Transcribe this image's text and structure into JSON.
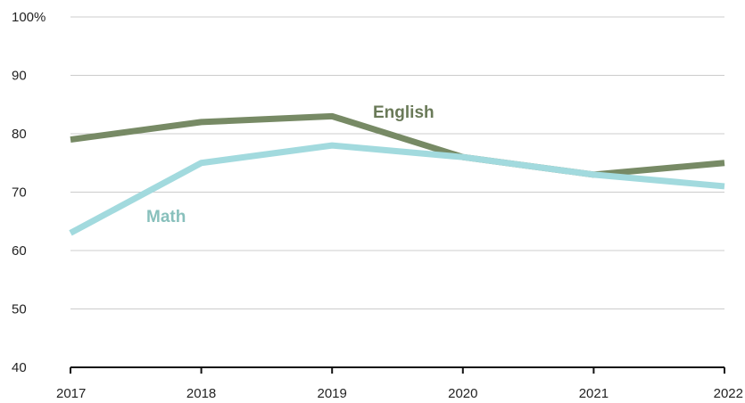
{
  "chart_data": {
    "type": "line",
    "x": [
      "2017",
      "2018",
      "2019",
      "2020",
      "2021",
      "2022"
    ],
    "series": [
      {
        "name": "English",
        "values": [
          79,
          82,
          83,
          76,
          73,
          75
        ],
        "color": "#778a65"
      },
      {
        "name": "Math",
        "values": [
          63,
          75,
          78,
          76,
          73,
          71
        ],
        "color": "#a2dade"
      }
    ],
    "ylim": [
      40,
      100
    ],
    "yticks": [
      {
        "value": 40,
        "label": "40"
      },
      {
        "value": 50,
        "label": "50"
      },
      {
        "value": 60,
        "label": "60"
      },
      {
        "value": 70,
        "label": "70"
      },
      {
        "value": 80,
        "label": "80"
      },
      {
        "value": 90,
        "label": "90"
      },
      {
        "value": 100,
        "label": "100%"
      }
    ],
    "grid": true,
    "grid_color": "#cccccc",
    "label_colors": {
      "English": "#6a7a58",
      "Math": "#88c0bc"
    }
  }
}
